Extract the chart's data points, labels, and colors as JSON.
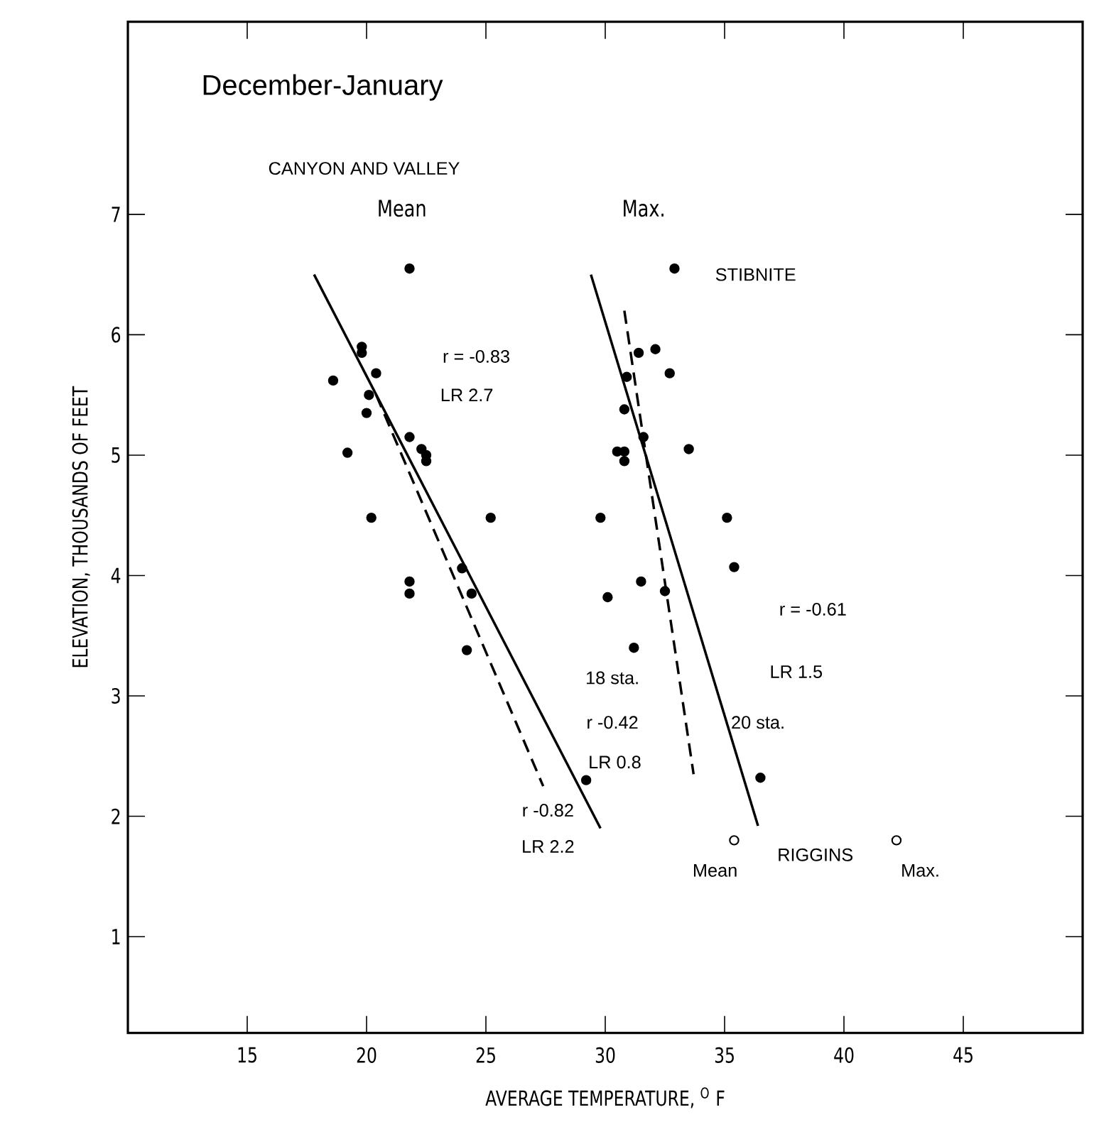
{
  "chart_data": {
    "type": "scatter",
    "title": "December-January",
    "subtitle": "CANYON AND VALLEY",
    "xlabel": "AVERAGE TEMPERATURE, $^{O}$ F",
    "ylabel": "ELEVATION, THOUSANDS OF FEET",
    "xlim": [
      10,
      50
    ],
    "ylim": [
      0.2,
      8.6
    ],
    "xticks": [
      15,
      20,
      25,
      30,
      35,
      40,
      45
    ],
    "yticks": [
      1,
      2,
      3,
      4,
      5,
      6,
      7
    ],
    "grid": false,
    "series": [
      {
        "name": "Mean",
        "color": "#000000",
        "x": [
          21.8,
          19.8,
          19.8,
          18.6,
          20.4,
          20.1,
          20.0,
          19.2,
          21.8,
          22.3,
          22.5,
          22.5,
          20.2,
          25.2,
          21.8,
          21.8,
          24.0,
          24.4,
          24.2,
          29.2
        ],
        "values": [
          6.55,
          5.9,
          5.85,
          5.62,
          5.68,
          5.5,
          5.35,
          5.02,
          5.15,
          5.05,
          5.0,
          4.95,
          4.48,
          4.48,
          3.95,
          3.85,
          4.06,
          3.85,
          3.38,
          2.3
        ]
      },
      {
        "name": "Max.",
        "color": "#000000",
        "x": [
          32.9,
          31.4,
          32.1,
          32.7,
          30.9,
          30.8,
          31.6,
          30.5,
          30.8,
          30.8,
          33.5,
          29.8,
          35.1,
          31.5,
          35.4,
          30.1,
          32.5,
          31.2,
          36.5
        ],
        "values": [
          6.55,
          5.85,
          5.88,
          5.68,
          5.65,
          5.38,
          5.15,
          5.03,
          5.03,
          4.95,
          5.05,
          4.48,
          4.48,
          3.95,
          4.07,
          3.82,
          3.87,
          3.4,
          2.32
        ]
      },
      {
        "color": "#ffffff",
        "x": [
          35.4,
          42.2
        ],
        "values": [
          1.8,
          1.8
        ]
      },
      {
        "type": "line",
        "color": "#000000",
        "line_style": "solid",
        "x": [
          17.8,
          29.8
        ],
        "values": [
          6.5,
          1.9
        ]
      },
      {
        "type": "line",
        "color": "#000000",
        "line_style": "dashed",
        "x": [
          20.4,
          27.4
        ],
        "values": [
          5.5,
          2.25
        ]
      },
      {
        "type": "line",
        "color": "#000000",
        "line_style": "solid",
        "x": [
          29.4,
          36.4
        ],
        "values": [
          6.5,
          1.92
        ]
      },
      {
        "type": "line",
        "color": "#000000",
        "line_style": "dashed",
        "x": [
          30.8,
          33.7
        ],
        "values": [
          6.2,
          2.35
        ]
      }
    ],
    "annotations": [
      "r = -0.83",
      "LR 2.7",
      "r -0.82",
      "LR 2.2",
      "18 sta.",
      "r -0.42",
      "LR 0.8",
      "20 sta.",
      "r = -0.61",
      "LR 1.5",
      "STIBNITE",
      "RIGGINS",
      "Mean",
      "Max."
    ]
  }
}
